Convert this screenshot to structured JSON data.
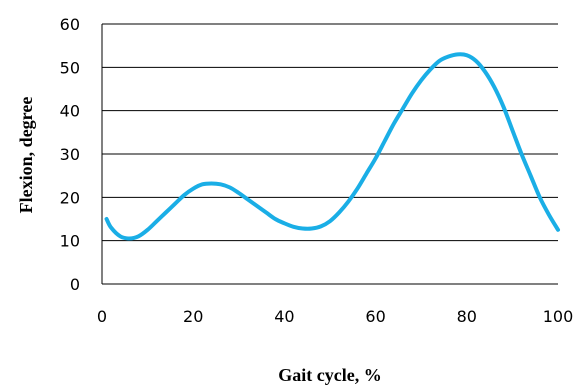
{
  "chart_data": {
    "type": "line",
    "title": "",
    "xlabel": "Gait cycle, %",
    "ylabel": "Flexion, degree",
    "xlim": [
      0,
      100
    ],
    "ylim": [
      0,
      60
    ],
    "xticks": [
      0,
      20,
      40,
      60,
      80,
      100
    ],
    "yticks": [
      0,
      10,
      20,
      30,
      40,
      50,
      60
    ],
    "x_tick_labels": [
      "0",
      "20",
      "40",
      "60",
      "80",
      "100"
    ],
    "y_tick_labels": [
      "0",
      "10",
      "20",
      "30",
      "40",
      "50",
      "60"
    ],
    "grid": "horizontal",
    "legend": "none",
    "colors": {
      "line": "#1aaee6",
      "grid": "#000000",
      "axis": "#000000"
    },
    "series": [
      {
        "x": [
          1,
          2,
          4,
          6,
          8,
          10,
          12,
          14,
          16,
          18,
          20,
          22,
          24,
          26,
          28,
          30,
          32,
          34,
          36,
          38,
          40,
          42,
          44,
          46,
          48,
          50,
          52,
          54,
          56,
          58,
          60,
          62,
          64,
          66,
          68,
          70,
          72,
          74,
          76,
          78,
          80,
          82,
          84,
          86,
          88,
          90,
          92,
          94,
          96,
          98,
          100
        ],
        "values": [
          15,
          13,
          11,
          10.5,
          11,
          12.5,
          14.5,
          16.5,
          18.5,
          20.5,
          22,
          23,
          23.2,
          23,
          22.3,
          21,
          19.5,
          18,
          16.5,
          15,
          14,
          13.2,
          12.8,
          12.8,
          13.3,
          14.5,
          16.5,
          19,
          22,
          25.5,
          29,
          33,
          37,
          40.5,
          44,
          47,
          49.5,
          51.5,
          52.5,
          53,
          52.8,
          51.5,
          49,
          45.5,
          41,
          35.5,
          30,
          25,
          20,
          16,
          12.5
        ]
      }
    ]
  }
}
